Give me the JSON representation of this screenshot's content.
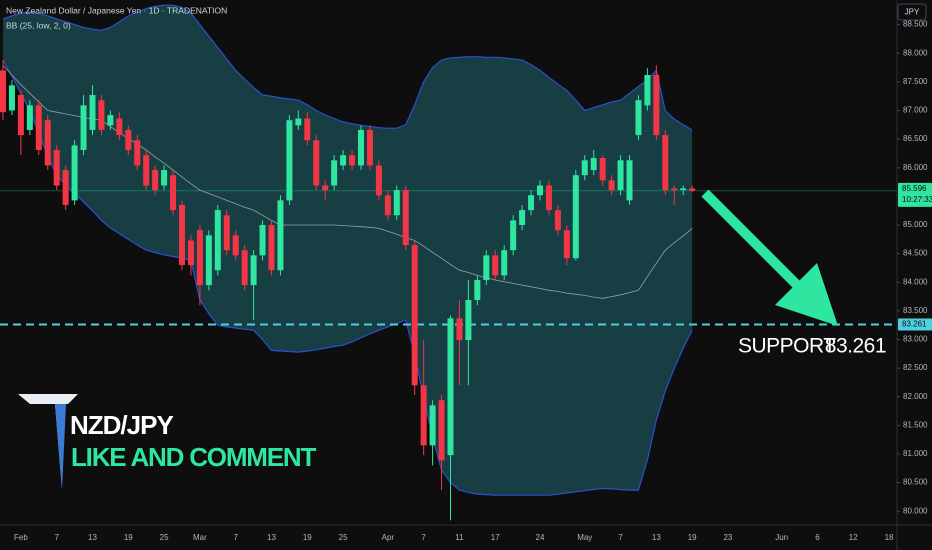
{
  "chart_data": {
    "type": "candlestick",
    "title": "New Zealand Dollar / Japanese Yen · 1D · TRADENATION",
    "indicator": "BB (25, low, 2, 0)",
    "currency": "JPY",
    "annotations": [
      "NZD/JPY",
      "LIKE AND COMMENT"
    ],
    "support_label": "SUPPORT",
    "support": 83.261,
    "last_price": 85.596,
    "countdown": "10:27:33",
    "up_color": "#2ee6a0",
    "down_color": "#f23645",
    "band_color": "#2d4fd0",
    "band_fill": "#174449",
    "middle_color": "#9aa0a6",
    "support_color": "#4dd0e1",
    "ylim": [
      79.76,
      88.93
    ],
    "yticks": [
      {
        "value": 88.5,
        "label": "88.500"
      },
      {
        "value": 88,
        "label": "88.000"
      },
      {
        "value": 87.5,
        "label": "87.500"
      },
      {
        "value": 87,
        "label": "87.000"
      },
      {
        "value": 86.5,
        "label": "86.500"
      },
      {
        "value": 86,
        "label": "86.000"
      },
      {
        "value": 85,
        "label": "85.000"
      },
      {
        "value": 84.5,
        "label": "84.500"
      },
      {
        "value": 84,
        "label": "84.000"
      },
      {
        "value": 83.5,
        "label": "83.500"
      },
      {
        "value": 83,
        "label": "83.000"
      },
      {
        "value": 82.5,
        "label": "82.500"
      },
      {
        "value": 82,
        "label": "82.000"
      },
      {
        "value": 81.5,
        "label": "81.500"
      },
      {
        "value": 81,
        "label": "81.000"
      },
      {
        "value": 80.5,
        "label": "80.500"
      },
      {
        "value": 80,
        "label": "80.000"
      }
    ],
    "categories": [
      null,
      null,
      "Feb",
      null,
      null,
      null,
      "7",
      null,
      null,
      null,
      "13",
      null,
      null,
      null,
      "19",
      null,
      null,
      null,
      "25",
      null,
      null,
      null,
      "Mar",
      null,
      null,
      null,
      "7",
      null,
      null,
      null,
      "13",
      null,
      null,
      null,
      "19",
      null,
      null,
      null,
      "25",
      null,
      null,
      null,
      null,
      "Apr",
      null,
      null,
      null,
      "7",
      null,
      null,
      null,
      "11",
      null,
      null,
      null,
      "17",
      null,
      null,
      null,
      null,
      "24",
      null,
      null,
      null,
      null,
      "May",
      null,
      null,
      null,
      "7",
      null,
      null,
      null,
      "13",
      null,
      null,
      null,
      "19",
      null,
      null,
      null,
      "23",
      null,
      null,
      null,
      null,
      null,
      "Jun",
      null,
      null,
      null,
      "6",
      null,
      null,
      null,
      "12",
      null,
      null,
      null,
      "18"
    ],
    "open": [
      87.7,
      87.0,
      87.27,
      86.66,
      87.09,
      86.83,
      86.31,
      85.96,
      85.43,
      86.31,
      86.66,
      87.18,
      86.74,
      86.86,
      86.66,
      86.48,
      86.22,
      85.96,
      85.69,
      85.87,
      85.35,
      84.73,
      84.91,
      83.95,
      84.21,
      85.17,
      84.82,
      84.56,
      83.95,
      84.47,
      85.0,
      84.21,
      85.43,
      86.74,
      86.86,
      86.48,
      85.69,
      85.69,
      86.04,
      86.22,
      86.04,
      86.66,
      86.04,
      85.52,
      85.17,
      85.61,
      84.65,
      82.2,
      81.15,
      81.94,
      80.98,
      83.37,
      82.99,
      83.69,
      84.04,
      84.47,
      84.12,
      84.56,
      85.0,
      85.26,
      85.52,
      85.69,
      85.26,
      84.91,
      84.42,
      85.87,
      85.96,
      86.17,
      85.78,
      85.61,
      85.43,
      86.57,
      87.09,
      87.62,
      86.57,
      85.64,
      85.61,
      85.64,
      null,
      null,
      null,
      null,
      null,
      null,
      null,
      null,
      null,
      null,
      null,
      null,
      null,
      null,
      null,
      null,
      null,
      null,
      null,
      null,
      null,
      null
    ],
    "high": [
      87.88,
      87.53,
      87.35,
      87.18,
      87.18,
      86.92,
      86.39,
      86.04,
      86.48,
      87.27,
      87.44,
      87.27,
      87.0,
      86.97,
      86.74,
      86.57,
      86.31,
      86.04,
      86.04,
      85.96,
      85.43,
      84.82,
      85.0,
      84.91,
      85.35,
      85.26,
      84.91,
      84.65,
      84.56,
      85.08,
      85.08,
      85.52,
      86.92,
      87.0,
      86.97,
      86.57,
      85.78,
      86.22,
      86.31,
      86.31,
      86.74,
      86.74,
      86.13,
      85.61,
      85.69,
      85.69,
      84.73,
      82.99,
      81.94,
      82.03,
      83.42,
      83.69,
      84.04,
      84.12,
      84.56,
      84.56,
      84.65,
      85.17,
      85.35,
      85.61,
      85.78,
      85.78,
      85.35,
      85.0,
      85.96,
      86.22,
      86.31,
      86.22,
      85.87,
      86.22,
      86.22,
      87.27,
      87.74,
      87.79,
      86.66,
      85.69,
      85.69,
      85.69,
      null,
      null,
      null,
      null,
      null,
      null,
      null,
      null,
      null,
      null,
      null,
      null,
      null,
      null,
      null,
      null,
      null,
      null,
      null,
      null,
      null,
      null
    ],
    "low": [
      86.83,
      86.92,
      86.22,
      86.57,
      86.22,
      85.96,
      85.61,
      85.26,
      85.35,
      86.22,
      86.57,
      86.57,
      86.66,
      86.48,
      86.22,
      85.96,
      85.61,
      85.52,
      85.61,
      85.17,
      84.21,
      84.12,
      83.6,
      83.86,
      84.12,
      84.47,
      84.38,
      83.86,
      83.34,
      84.38,
      84.12,
      84.12,
      85.35,
      86.66,
      86.39,
      85.61,
      85.43,
      85.61,
      85.96,
      85.96,
      85.96,
      85.96,
      85.43,
      85.08,
      85.08,
      84.56,
      82.03,
      80.98,
      80.8,
      80.37,
      79.84,
      82.2,
      82.2,
      83.6,
      83.95,
      84.04,
      84.04,
      84.47,
      84.91,
      85.17,
      85.43,
      85.17,
      84.82,
      84.3,
      84.38,
      85.78,
      85.87,
      85.69,
      85.52,
      85.52,
      85.35,
      86.48,
      87.0,
      86.48,
      85.52,
      85.35,
      85.52,
      85.57,
      null,
      null,
      null,
      null,
      null,
      null,
      null,
      null,
      null,
      null,
      null,
      null,
      null,
      null,
      null,
      null,
      null,
      null,
      null,
      null,
      null,
      null
    ],
    "close": [
      86.97,
      87.44,
      86.57,
      87.09,
      86.31,
      86.04,
      85.69,
      85.35,
      86.39,
      87.09,
      87.27,
      86.66,
      86.92,
      86.57,
      86.31,
      86.04,
      85.69,
      85.61,
      85.96,
      85.26,
      84.3,
      84.3,
      83.95,
      84.82,
      85.26,
      84.56,
      84.47,
      83.95,
      84.47,
      85.0,
      84.21,
      85.43,
      86.83,
      86.86,
      86.48,
      85.69,
      85.61,
      86.13,
      86.22,
      86.04,
      86.66,
      86.04,
      85.52,
      85.17,
      85.61,
      84.65,
      82.2,
      81.15,
      81.85,
      80.89,
      83.37,
      82.99,
      83.69,
      84.04,
      84.47,
      84.12,
      84.56,
      85.08,
      85.26,
      85.52,
      85.69,
      85.26,
      84.91,
      84.42,
      85.87,
      86.13,
      86.17,
      85.78,
      85.61,
      86.13,
      86.13,
      87.18,
      87.62,
      86.57,
      85.61,
      85.61,
      85.64,
      85.596,
      null,
      null,
      null,
      null,
      null,
      null,
      null,
      null,
      null,
      null,
      null,
      null,
      null,
      null,
      null,
      null,
      null,
      null,
      null,
      null,
      null,
      null
    ],
    "bands": {
      "upper": [
        88.6,
        88.65,
        88.7,
        88.72,
        88.7,
        88.65,
        88.6,
        88.55,
        88.5,
        88.45,
        88.42,
        88.4,
        88.45,
        88.55,
        88.65,
        88.72,
        88.78,
        88.82,
        88.84,
        88.84,
        88.8,
        88.7,
        88.5,
        88.3,
        88.1,
        87.9,
        87.7,
        87.55,
        87.4,
        87.27,
        87.25,
        87.22,
        87.2,
        87.18,
        87.1,
        87.0,
        86.92,
        86.86,
        86.8,
        86.77,
        86.74,
        86.72,
        86.7,
        86.69,
        86.69,
        86.75,
        87.1,
        87.5,
        87.75,
        87.88,
        87.92,
        87.93,
        87.94,
        87.94,
        87.93,
        87.93,
        87.92,
        87.9,
        87.88,
        87.8,
        87.7,
        87.58,
        87.46,
        87.35,
        87.18,
        87.0,
        87.05,
        87.1,
        87.15,
        87.18,
        87.3,
        87.42,
        87.53,
        87.7,
        87.0,
        86.85,
        86.75,
        86.66,
        null,
        null,
        null,
        null,
        null,
        null,
        null,
        null,
        null,
        null,
        null,
        null,
        null,
        null,
        null,
        null,
        null,
        null,
        null,
        null,
        null,
        null
      ],
      "middle": [
        87.79,
        87.62,
        87.45,
        87.3,
        87.15,
        87.0,
        86.97,
        86.94,
        86.91,
        86.88,
        86.85,
        86.83,
        86.72,
        86.61,
        86.51,
        86.41,
        86.31,
        86.19,
        86.08,
        85.96,
        85.84,
        85.72,
        85.61,
        85.55,
        85.49,
        85.43,
        85.37,
        85.31,
        85.26,
        85.17,
        85.08,
        85.0,
        85.0,
        85.0,
        85.0,
        85.0,
        85.0,
        85.0,
        84.99,
        84.98,
        84.97,
        84.96,
        84.94,
        84.89,
        84.84,
        84.78,
        84.73,
        84.63,
        84.52,
        84.42,
        84.31,
        84.21,
        84.17,
        84.12,
        84.08,
        84.04,
        84.01,
        83.98,
        83.95,
        83.92,
        83.89,
        83.86,
        83.84,
        83.81,
        83.79,
        83.77,
        83.74,
        83.72,
        83.75,
        83.78,
        83.82,
        83.86,
        84.1,
        84.33,
        84.56,
        84.69,
        84.81,
        84.94,
        null,
        null,
        null,
        null,
        null,
        null,
        null,
        null,
        null,
        null,
        null,
        null,
        null,
        null,
        null,
        null,
        null,
        null,
        null,
        null,
        null,
        null
      ],
      "lower": [
        87.88,
        87.6,
        87.3,
        87.0,
        86.6,
        86.2,
        85.87,
        85.7,
        85.55,
        85.4,
        85.25,
        85.08,
        84.95,
        84.85,
        84.75,
        84.65,
        84.56,
        84.52,
        84.48,
        84.45,
        84.42,
        84.38,
        83.69,
        83.45,
        83.25,
        83.22,
        83.2,
        83.18,
        83.16,
        83.0,
        82.81,
        82.8,
        82.79,
        82.78,
        82.8,
        82.82,
        82.85,
        82.88,
        82.9,
        82.96,
        83.03,
        83.1,
        83.16,
        83.22,
        83.28,
        83.34,
        82.73,
        82.0,
        81.3,
        80.72,
        80.5,
        80.37,
        80.33,
        80.3,
        80.29,
        80.28,
        80.28,
        80.28,
        80.28,
        80.28,
        80.28,
        80.28,
        80.3,
        80.32,
        80.34,
        80.36,
        80.38,
        80.4,
        80.39,
        80.38,
        80.37,
        80.37,
        80.9,
        81.59,
        82.1,
        82.5,
        82.85,
        83.16,
        null,
        null,
        null,
        null,
        null,
        null,
        null,
        null,
        null,
        null,
        null,
        null,
        null,
        null,
        null,
        null,
        null,
        null,
        null,
        null,
        null,
        null
      ]
    }
  }
}
